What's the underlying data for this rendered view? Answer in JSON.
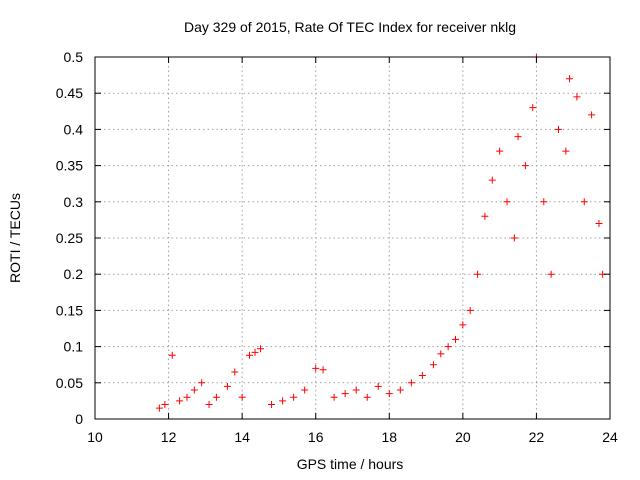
{
  "chart_data": {
    "type": "scatter",
    "title": "Day 329 of 2015, Rate Of TEC Index for receiver nklg",
    "xlabel": "GPS time / hours",
    "ylabel": "ROTI / TECUs",
    "xlim": [
      10,
      24
    ],
    "ylim": [
      0,
      0.5
    ],
    "x_ticks": [
      "10",
      "12",
      "14",
      "16",
      "18",
      "20",
      "22",
      "24"
    ],
    "y_ticks": [
      "0",
      "0.05",
      "0.1",
      "0.15",
      "0.2",
      "0.25",
      "0.3",
      "0.35",
      "0.4",
      "0.45",
      "0.5"
    ],
    "grid": true,
    "marker": "+",
    "color": "#ff0000",
    "series": [
      {
        "points": [
          [
            11.75,
            0.015
          ],
          [
            11.9,
            0.02
          ],
          [
            12.1,
            0.088
          ],
          [
            12.3,
            0.025
          ],
          [
            12.5,
            0.03
          ],
          [
            12.7,
            0.04
          ],
          [
            12.9,
            0.05
          ],
          [
            13.1,
            0.02
          ],
          [
            13.3,
            0.03
          ],
          [
            13.6,
            0.045
          ],
          [
            13.8,
            0.065
          ],
          [
            14.0,
            0.03
          ],
          [
            14.2,
            0.088
          ],
          [
            14.35,
            0.092
          ],
          [
            14.5,
            0.097
          ],
          [
            14.8,
            0.02
          ],
          [
            15.1,
            0.025
          ],
          [
            15.4,
            0.03
          ],
          [
            15.7,
            0.04
          ],
          [
            16.0,
            0.07
          ],
          [
            16.2,
            0.068
          ],
          [
            16.5,
            0.03
          ],
          [
            16.8,
            0.035
          ],
          [
            17.1,
            0.04
          ],
          [
            17.4,
            0.03
          ],
          [
            17.7,
            0.045
          ],
          [
            18.0,
            0.035
          ],
          [
            18.3,
            0.04
          ],
          [
            18.6,
            0.05
          ],
          [
            18.9,
            0.06
          ],
          [
            19.2,
            0.075
          ],
          [
            19.4,
            0.09
          ],
          [
            19.6,
            0.1
          ],
          [
            19.8,
            0.11
          ],
          [
            20.0,
            0.13
          ],
          [
            20.2,
            0.15
          ],
          [
            20.4,
            0.2
          ],
          [
            20.6,
            0.28
          ],
          [
            20.8,
            0.33
          ],
          [
            21.0,
            0.37
          ],
          [
            21.2,
            0.3
          ],
          [
            21.4,
            0.25
          ],
          [
            21.5,
            0.39
          ],
          [
            21.7,
            0.35
          ],
          [
            21.9,
            0.43
          ],
          [
            22.0,
            0.5
          ],
          [
            22.2,
            0.3
          ],
          [
            22.4,
            0.2
          ],
          [
            22.6,
            0.4
          ],
          [
            22.8,
            0.37
          ],
          [
            22.9,
            0.47
          ],
          [
            23.1,
            0.445
          ],
          [
            23.3,
            0.3
          ],
          [
            23.5,
            0.42
          ],
          [
            23.7,
            0.27
          ],
          [
            23.8,
            0.2
          ]
        ]
      }
    ]
  }
}
